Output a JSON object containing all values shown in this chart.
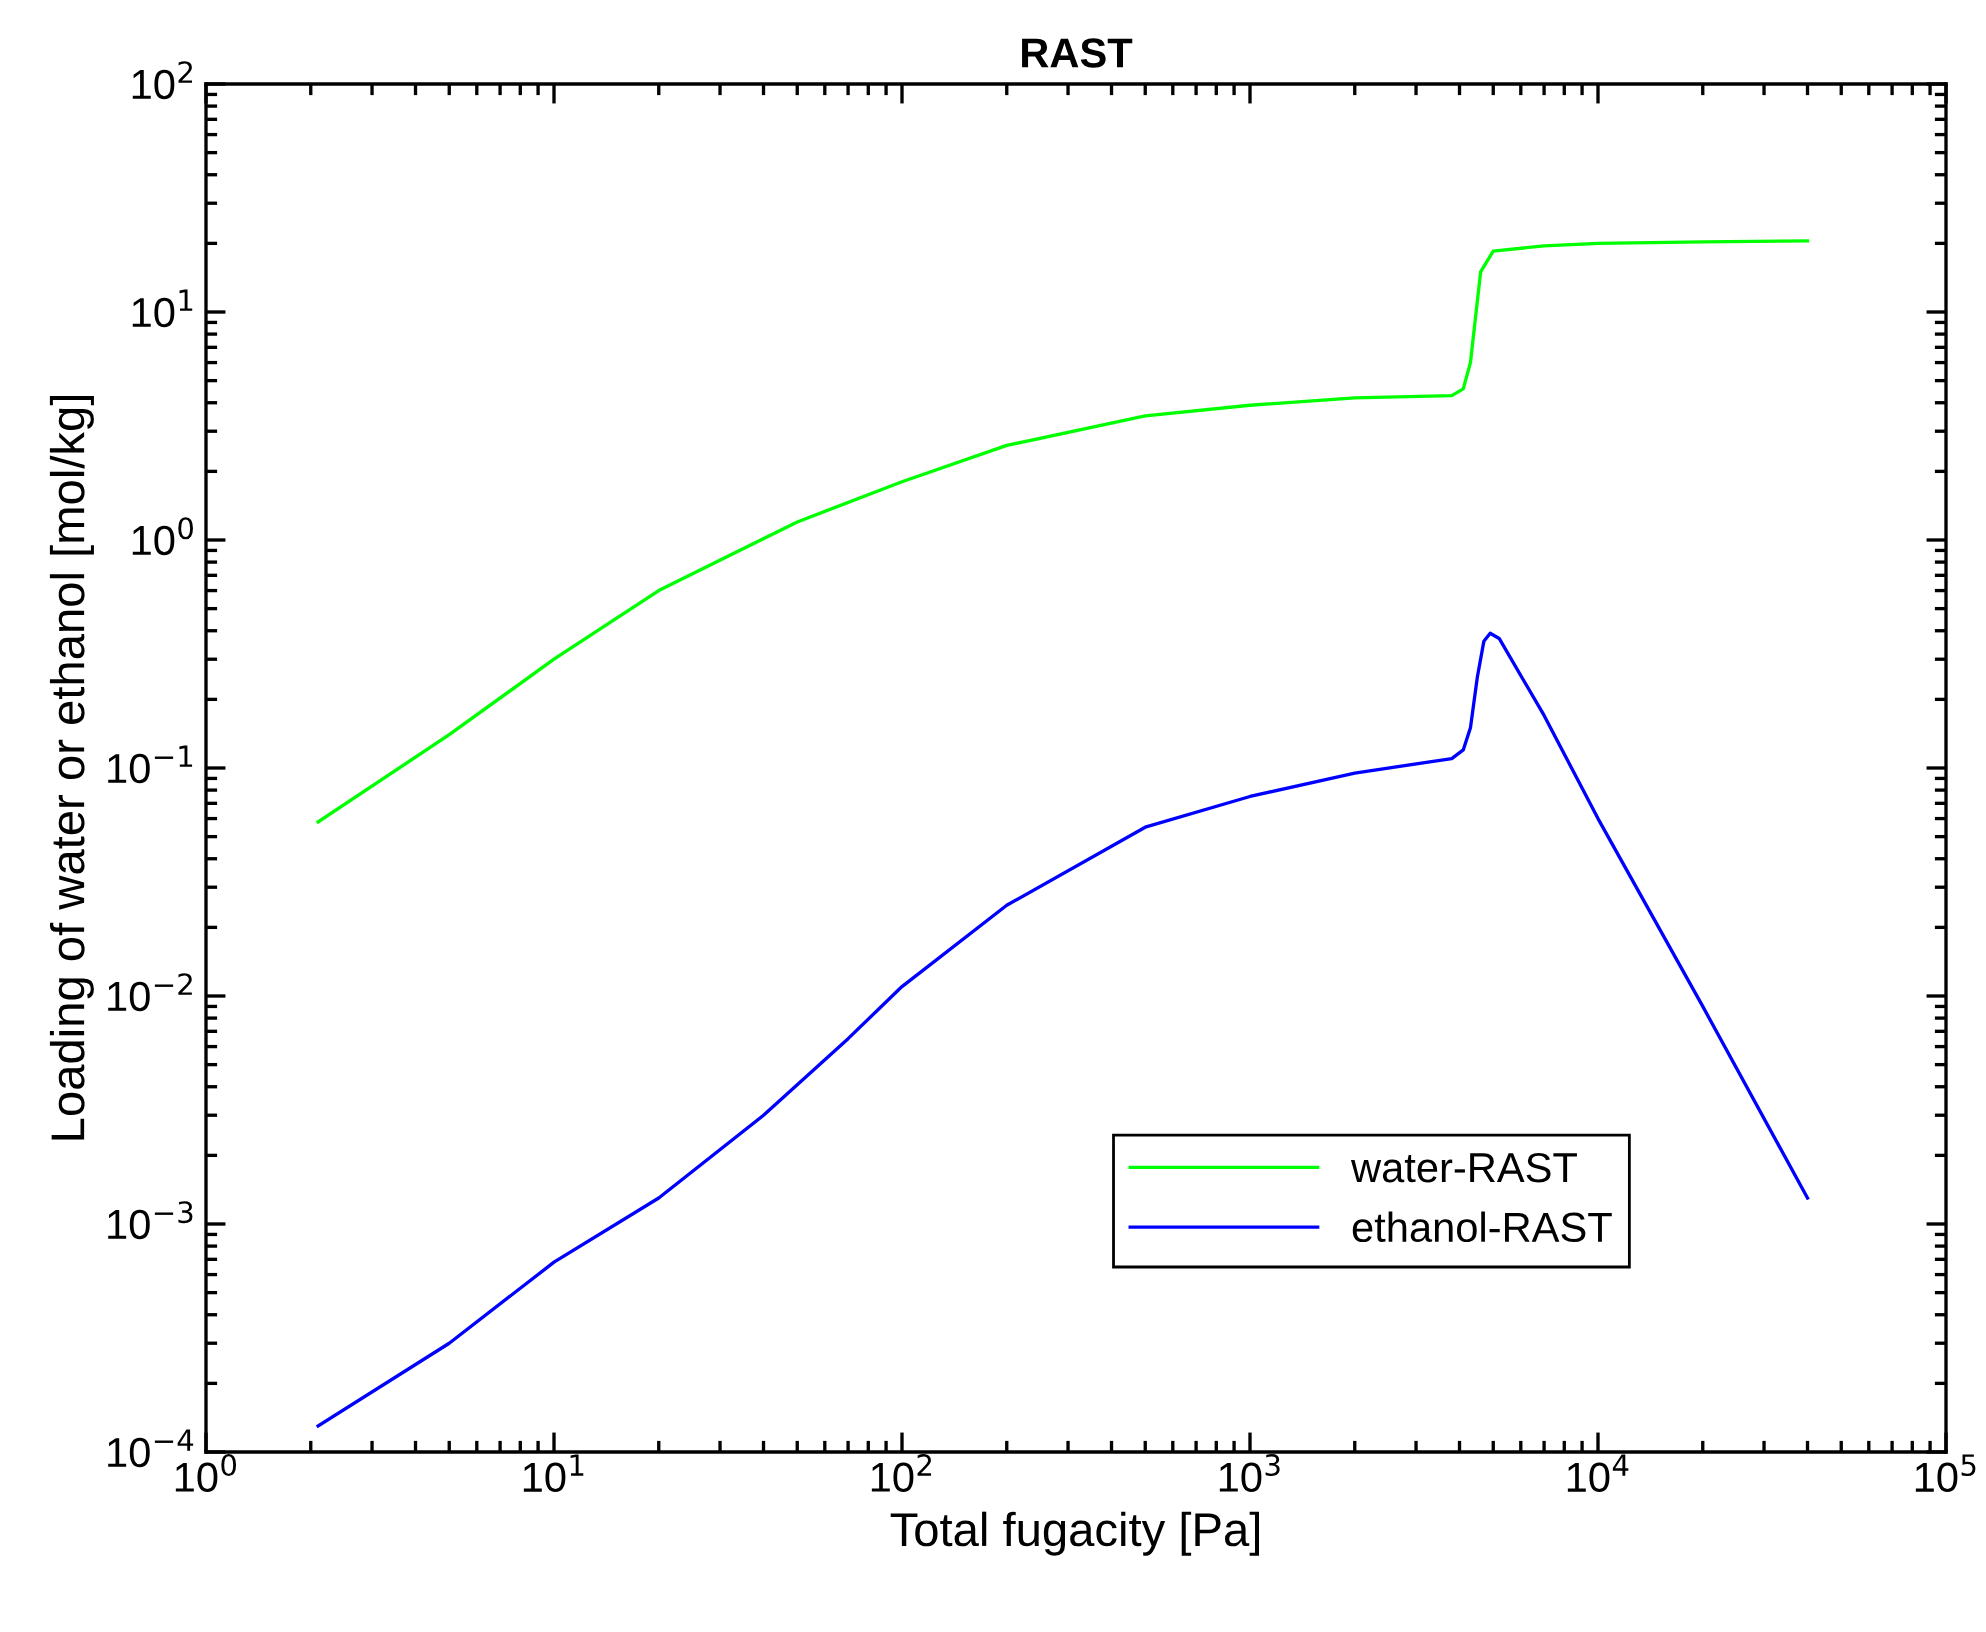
{
  "chart_data": {
    "type": "line",
    "title": "RAST",
    "xlabel": "Total fugacity [Pa]",
    "ylabel": "Loading of water or ethanol [mol/kg]",
    "log": "xy",
    "grid": false,
    "legend": "bottom right",
    "marker": "none",
    "line_style": "solid",
    "xlim": [
      1,
      100000
    ],
    "ylim": [
      0.0001,
      100
    ],
    "xticks": [
      {
        "value": 1,
        "label": "10$^{0}$"
      },
      {
        "value": 10,
        "label": "10$^{1}$"
      },
      {
        "value": 100,
        "label": "10$^{2}$"
      },
      {
        "value": 1000,
        "label": "10$^{3}$"
      },
      {
        "value": 10000,
        "label": "10$^{4}$"
      },
      {
        "value": 100000,
        "label": "10$^{5}$"
      }
    ],
    "yticks": [
      {
        "value": 0.0001,
        "label": "10$^{−4}$"
      },
      {
        "value": 0.001,
        "label": "10$^{−3}$"
      },
      {
        "value": 0.01,
        "label": "10$^{−2}$"
      },
      {
        "value": 0.1,
        "label": "10$^{−1}$"
      },
      {
        "value": 1,
        "label": "10$^{0}$"
      },
      {
        "value": 10,
        "label": "10$^{1}$"
      },
      {
        "value": 100,
        "label": "10$^{2}$"
      }
    ],
    "series": [
      {
        "name": "water-RAST",
        "color": "#00ff00",
        "x": [
          2.1,
          5,
          10,
          20,
          50,
          100,
          200,
          500,
          1000,
          2000,
          3800,
          4100,
          4300,
          4600,
          5000,
          7000,
          10000,
          20000,
          40000
        ],
        "values": [
          0.058,
          0.14,
          0.3,
          0.6,
          1.2,
          1.8,
          2.6,
          3.5,
          3.9,
          4.2,
          4.3,
          4.6,
          6,
          15,
          18.5,
          19.5,
          20,
          20.3,
          20.5
        ]
      },
      {
        "name": "ethanol-RAST",
        "color": "#0000ff",
        "x": [
          2.1,
          5,
          10,
          20,
          40,
          70,
          100,
          200,
          500,
          1000,
          2000,
          3800,
          4100,
          4300,
          4500,
          4700,
          4900,
          5200,
          7000,
          10000,
          20000,
          40000
        ],
        "values": [
          0.00013,
          0.0003,
          0.00068,
          0.0013,
          0.003,
          0.0065,
          0.011,
          0.025,
          0.055,
          0.075,
          0.095,
          0.11,
          0.12,
          0.15,
          0.25,
          0.36,
          0.39,
          0.37,
          0.17,
          0.06,
          0.009,
          0.0013
        ]
      }
    ]
  }
}
